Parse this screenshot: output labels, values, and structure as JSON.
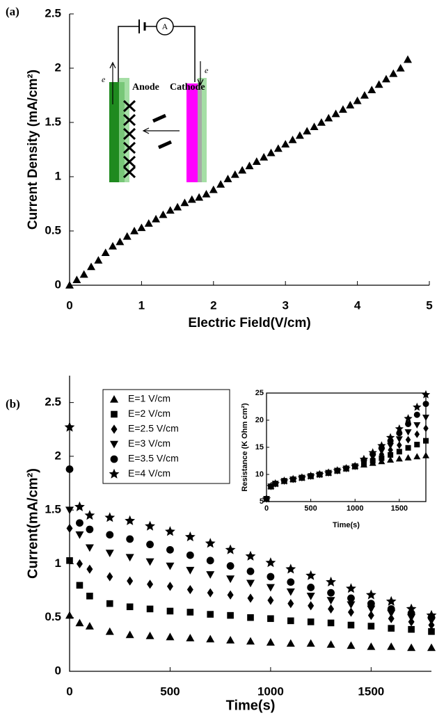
{
  "chart_data": [
    {
      "type": "scatter",
      "label": "(a)",
      "xlabel": "Electric Field(V/cm)",
      "ylabel": "Current Density (mA/cm²)",
      "xlim": [
        0,
        5
      ],
      "xticks": [
        0,
        1,
        2,
        3,
        4,
        5
      ],
      "ylim": [
        0,
        2.5
      ],
      "yticks": [
        0,
        0.5,
        1,
        1.5,
        2,
        2.5
      ],
      "annotations": [
        "A",
        "Anode",
        "Cathode",
        "e",
        "e"
      ],
      "x": [
        0,
        0.1,
        0.2,
        0.3,
        0.4,
        0.5,
        0.6,
        0.7,
        0.8,
        0.9,
        1.0,
        1.1,
        1.2,
        1.3,
        1.4,
        1.5,
        1.6,
        1.7,
        1.8,
        1.9,
        2.0,
        2.1,
        2.2,
        2.3,
        2.4,
        2.5,
        2.6,
        2.7,
        2.8,
        2.9,
        3.0,
        3.1,
        3.2,
        3.3,
        3.4,
        3.5,
        3.6,
        3.7,
        3.8,
        3.9,
        4.0,
        4.1,
        4.2,
        4.3,
        4.4,
        4.5,
        4.6,
        4.7
      ],
      "series": [
        {
          "color": "#000000",
          "marker": "triangle-up",
          "values": [
            0,
            0.05,
            0.1,
            0.17,
            0.23,
            0.3,
            0.36,
            0.4,
            0.45,
            0.5,
            0.53,
            0.57,
            0.61,
            0.65,
            0.69,
            0.72,
            0.76,
            0.79,
            0.81,
            0.84,
            0.88,
            0.93,
            0.98,
            1.02,
            1.06,
            1.1,
            1.14,
            1.18,
            1.22,
            1.26,
            1.3,
            1.34,
            1.38,
            1.42,
            1.46,
            1.5,
            1.54,
            1.58,
            1.62,
            1.66,
            1.7,
            1.75,
            1.8,
            1.85,
            1.9,
            1.95,
            2.0,
            2.08
          ]
        }
      ]
    },
    {
      "type": "scatter",
      "label": "(b)",
      "xlabel": "Time(s)",
      "ylabel": "Current(mA/cm²)",
      "xlim": [
        0,
        1800
      ],
      "xticks": [
        0,
        500,
        1000,
        1500
      ],
      "ylim": [
        0,
        2.75
      ],
      "yticks": [
        0,
        0.5,
        1,
        1.5,
        2,
        2.5
      ],
      "legend": "upper left",
      "x": [
        0,
        50,
        100,
        200,
        300,
        400,
        500,
        600,
        700,
        800,
        900,
        1000,
        1100,
        1200,
        1300,
        1400,
        1500,
        1600,
        1700,
        1800
      ],
      "series": [
        {
          "name": "E=1 V/cm",
          "color": "#000000",
          "marker": "triangle-up",
          "values": [
            0.52,
            0.45,
            0.42,
            0.37,
            0.34,
            0.33,
            0.32,
            0.31,
            0.3,
            0.29,
            0.28,
            0.27,
            0.26,
            0.26,
            0.25,
            0.24,
            0.23,
            0.23,
            0.22,
            0.22
          ]
        },
        {
          "name": "E=2 V/cm",
          "color": "#000000",
          "marker": "square",
          "values": [
            1.03,
            0.8,
            0.7,
            0.63,
            0.6,
            0.58,
            0.56,
            0.55,
            0.53,
            0.52,
            0.5,
            0.49,
            0.47,
            0.46,
            0.45,
            0.43,
            0.42,
            0.4,
            0.39,
            0.37
          ]
        },
        {
          "name": "E=2.5 V/cm",
          "color": "#000000",
          "marker": "diamond",
          "values": [
            1.33,
            1.0,
            0.95,
            0.88,
            0.84,
            0.81,
            0.79,
            0.76,
            0.73,
            0.71,
            0.68,
            0.66,
            0.63,
            0.61,
            0.58,
            0.55,
            0.52,
            0.49,
            0.46,
            0.43
          ]
        },
        {
          "name": "E=3 V/cm",
          "color": "#000000",
          "marker": "triangle-down",
          "values": [
            1.5,
            1.27,
            1.15,
            1.1,
            1.06,
            1.02,
            0.98,
            0.94,
            0.9,
            0.86,
            0.82,
            0.78,
            0.74,
            0.7,
            0.66,
            0.62,
            0.58,
            0.54,
            0.5,
            0.47
          ]
        },
        {
          "name": "E=3.5 V/cm",
          "color": "#000000",
          "marker": "circle",
          "values": [
            1.88,
            1.38,
            1.32,
            1.27,
            1.23,
            1.18,
            1.13,
            1.08,
            1.03,
            0.98,
            0.93,
            0.88,
            0.83,
            0.78,
            0.73,
            0.68,
            0.63,
            0.58,
            0.54,
            0.5
          ]
        },
        {
          "name": "E=4 V/cm",
          "color": "#000000",
          "marker": "star",
          "values": [
            2.27,
            1.53,
            1.45,
            1.43,
            1.4,
            1.35,
            1.3,
            1.25,
            1.19,
            1.13,
            1.07,
            1.01,
            0.95,
            0.89,
            0.83,
            0.77,
            0.71,
            0.65,
            0.58,
            0.52
          ]
        }
      ]
    },
    {
      "type": "scatter",
      "xlabel": "Time(s)",
      "ylabel": "Resistance (K Ohm cm²)",
      "xlim": [
        0,
        1800
      ],
      "xticks": [
        0,
        500,
        1000,
        1500
      ],
      "ylim": [
        5,
        25
      ],
      "yticks": [
        5,
        10,
        15,
        20,
        25
      ],
      "x": [
        0,
        50,
        100,
        200,
        300,
        400,
        500,
        600,
        700,
        800,
        900,
        1000,
        1100,
        1200,
        1300,
        1400,
        1500,
        1600,
        1700,
        1800
      ],
      "series": [
        {
          "color": "#000000",
          "marker": "triangle-up",
          "values": [
            5.5,
            7.8,
            8.3,
            8.8,
            9.1,
            9.4,
            9.7,
            10.0,
            10.3,
            10.7,
            11.1,
            11.5,
            11.8,
            12.1,
            12.4,
            12.7,
            12.9,
            13.1,
            13.3,
            13.5
          ]
        },
        {
          "color": "#000000",
          "marker": "square",
          "values": [
            5.5,
            7.8,
            8.3,
            8.8,
            9.1,
            9.4,
            9.7,
            10.0,
            10.3,
            10.7,
            11.1,
            11.5,
            12.0,
            12.5,
            13.0,
            13.6,
            14.2,
            14.9,
            15.5,
            16.2
          ]
        },
        {
          "color": "#000000",
          "marker": "diamond",
          "values": [
            5.5,
            7.8,
            8.3,
            8.8,
            9.1,
            9.4,
            9.7,
            10.0,
            10.3,
            10.7,
            11.1,
            11.5,
            12.2,
            12.9,
            13.7,
            14.5,
            15.4,
            16.4,
            17.4,
            18.5
          ]
        },
        {
          "color": "#000000",
          "marker": "triangle-down",
          "values": [
            5.5,
            7.8,
            8.3,
            8.8,
            9.1,
            9.4,
            9.7,
            10.0,
            10.3,
            10.7,
            11.1,
            11.5,
            12.4,
            13.3,
            14.3,
            15.3,
            16.5,
            17.8,
            19.1,
            20.5
          ]
        },
        {
          "color": "#000000",
          "marker": "circle",
          "values": [
            5.5,
            7.8,
            8.3,
            8.8,
            9.1,
            9.4,
            9.7,
            10.0,
            10.3,
            10.7,
            11.1,
            11.5,
            12.6,
            13.7,
            14.9,
            16.2,
            17.6,
            19.3,
            21.0,
            23.0
          ]
        },
        {
          "color": "#000000",
          "marker": "star",
          "values": [
            5.5,
            7.8,
            8.3,
            8.8,
            9.1,
            9.4,
            9.7,
            10.0,
            10.3,
            10.7,
            11.1,
            11.5,
            12.8,
            14.0,
            15.3,
            16.8,
            18.4,
            20.3,
            22.4,
            24.7
          ]
        }
      ]
    }
  ]
}
